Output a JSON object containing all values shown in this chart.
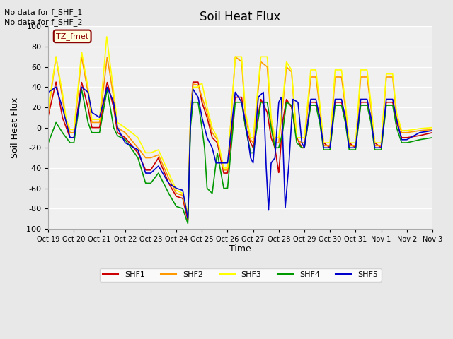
{
  "title": "Soil Heat Flux",
  "ylabel": "Soil Heat Flux",
  "xlabel": "Time",
  "ylim": [
    -100,
    100
  ],
  "annotations": [
    "No data for f_SHF_1",
    "No data for f_SHF_2"
  ],
  "legend_label": "TZ_fmet",
  "fig_bg": "#e8e8e8",
  "plot_bg": "#f0f0f0",
  "grid_color": "#cccccc",
  "series_colors": {
    "SHF1": "#cc0000",
    "SHF2": "#ff9900",
    "SHF3": "#ffff00",
    "SHF4": "#009900",
    "SHF5": "#0000cc"
  },
  "xtick_labels": [
    "Oct 19",
    "Oct 20",
    "Oct 21",
    "Oct 22",
    "Oct 23",
    "Oct 24",
    "Oct 25",
    "Oct 26",
    "Oct 27",
    "Oct 28",
    "Oct 29",
    "Oct 30",
    "Oct 31",
    "Nov 1",
    "Nov 2",
    "Nov 3"
  ],
  "ytick_values": [
    -100,
    -80,
    -60,
    -40,
    -20,
    0,
    20,
    40,
    60,
    80,
    100
  ]
}
